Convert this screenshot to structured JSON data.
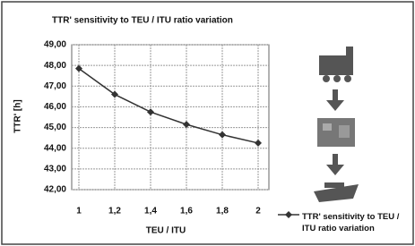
{
  "chart_data": {
    "type": "line",
    "title": "TTR' sensitivity to TEU / ITU ratio variation",
    "x_label": "TEU / ITU",
    "y_label": "TTR' [h]",
    "x": [
      1,
      1.2,
      1.4,
      1.6,
      1.8,
      2
    ],
    "series": [
      {
        "name": "TTR' sensitivity to TEU / ITU ratio variation",
        "color": "#333333",
        "values": [
          47.85,
          46.6,
          45.75,
          45.15,
          44.65,
          44.25
        ]
      }
    ],
    "xlim": [
      0.96,
      2.06
    ],
    "xticks": [
      1,
      {
        "value": 1.2,
        "label": "1,2"
      },
      {
        "value": 1.4,
        "label": "1,4"
      },
      {
        "value": 1.6,
        "label": "1,6"
      },
      {
        "value": 1.8,
        "label": "1,8"
      },
      2
    ],
    "ylim": [
      42,
      49
    ],
    "yticks": [
      {
        "value": 42,
        "label": "42,00"
      },
      {
        "value": 43,
        "label": "43,00"
      },
      {
        "value": 44,
        "label": "44,00"
      },
      {
        "value": 45,
        "label": "45,00"
      },
      {
        "value": 46,
        "label": "46,00"
      },
      {
        "value": 47,
        "label": "47,00"
      },
      {
        "value": 48,
        "label": "48,00"
      },
      {
        "value": 49,
        "label": "49,00"
      }
    ],
    "grid": true,
    "legend": "right"
  }
}
